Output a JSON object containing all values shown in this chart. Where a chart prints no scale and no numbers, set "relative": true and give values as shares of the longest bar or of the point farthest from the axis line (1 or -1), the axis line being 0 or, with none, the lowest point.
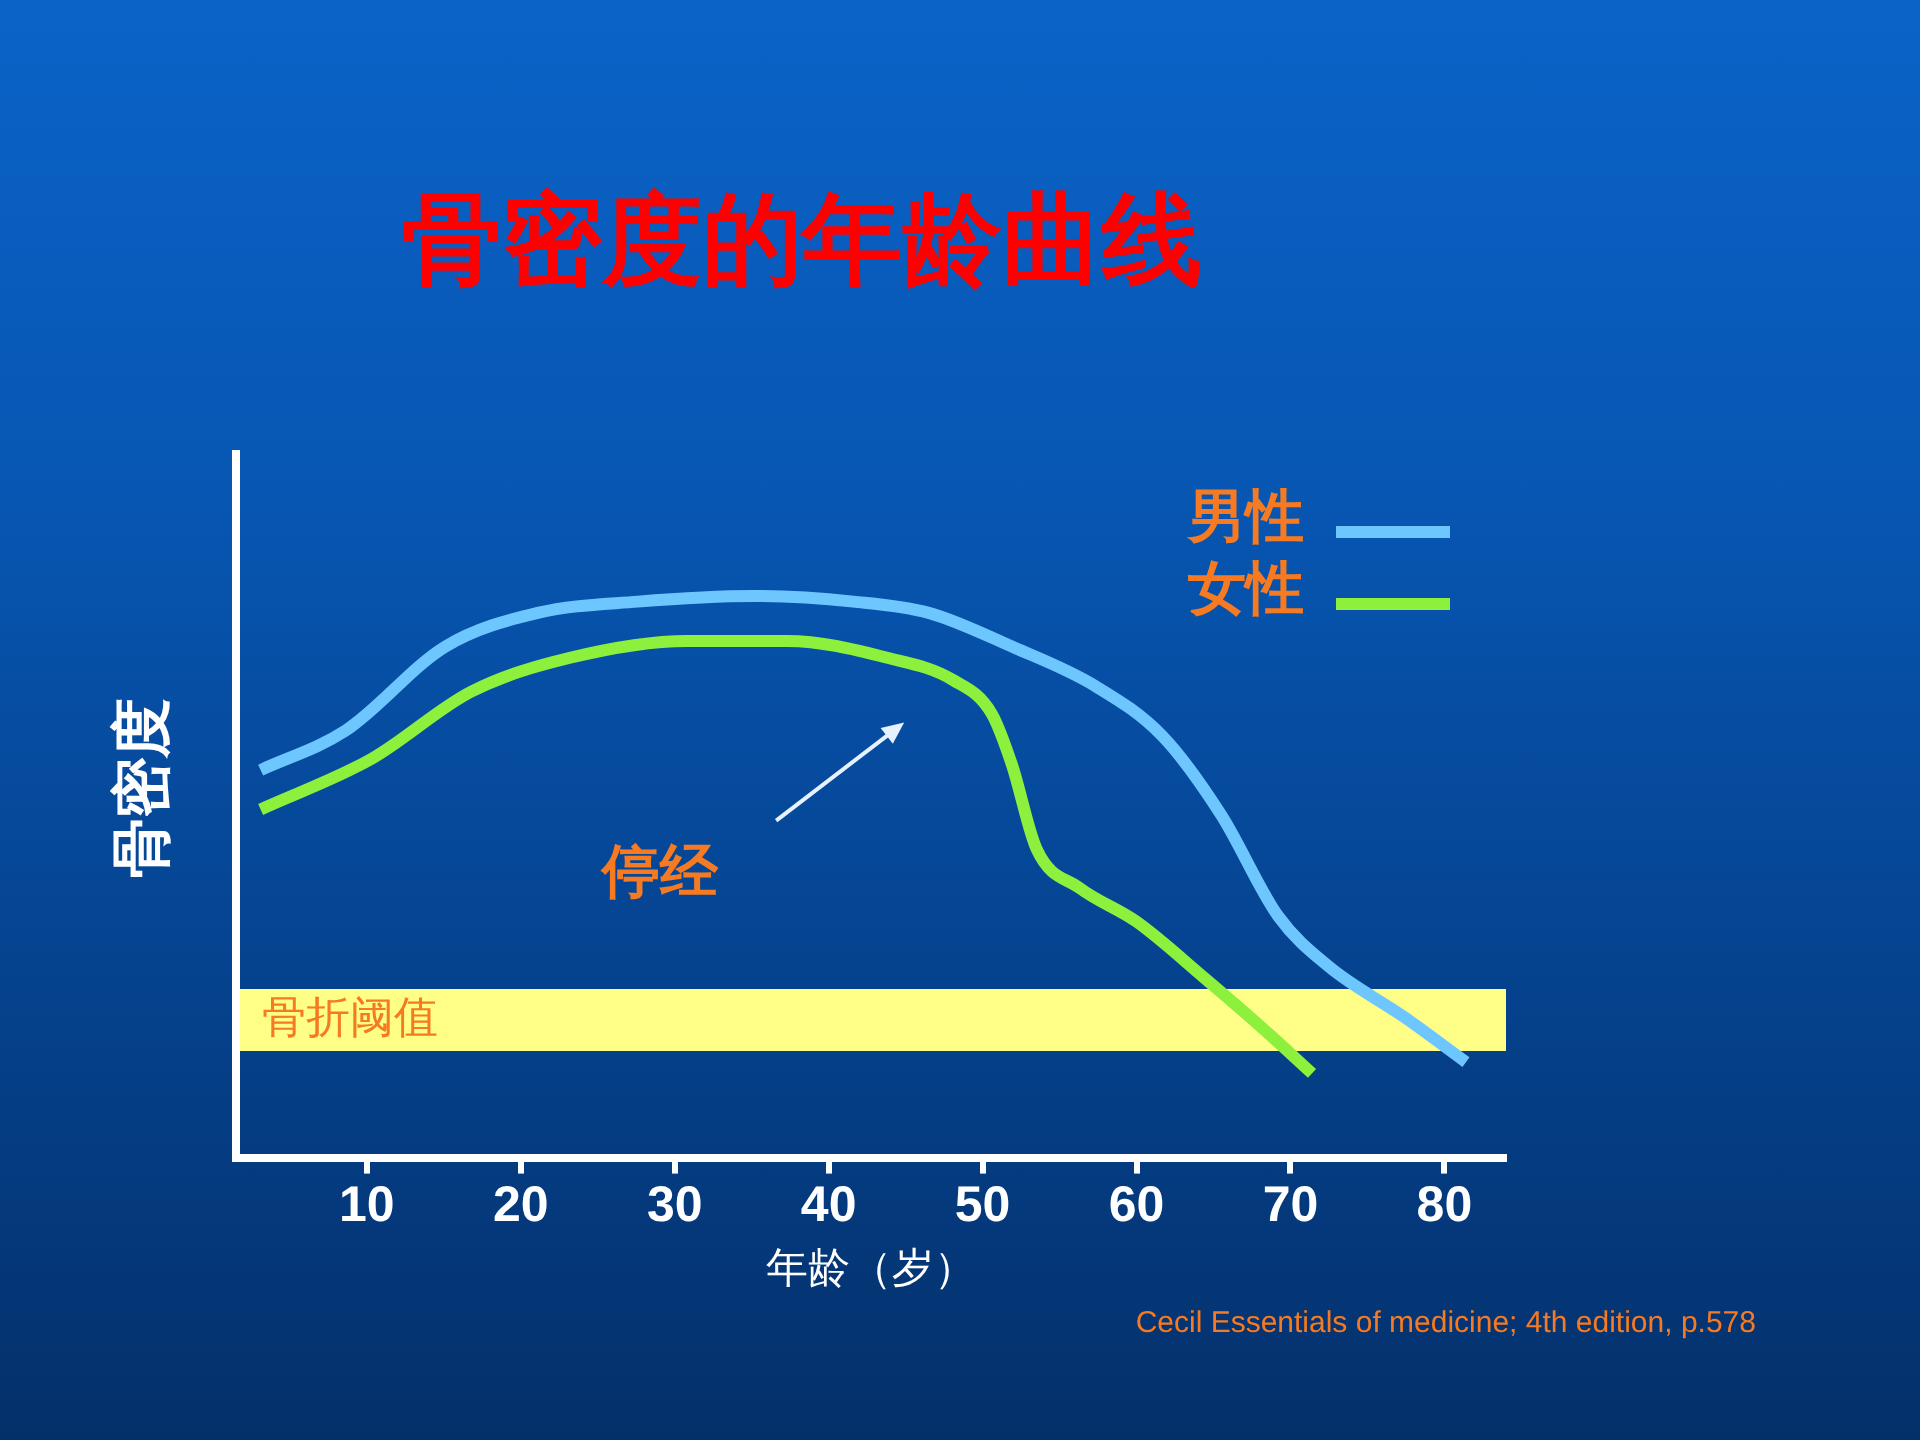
{
  "chart_data": {
    "type": "line",
    "title": "骨密度的年龄曲线",
    "xlabel": "年龄（岁）",
    "ylabel": "骨密度",
    "relative": true,
    "xlim": [
      1.5,
      84
    ],
    "xticks": [
      10,
      20,
      30,
      40,
      50,
      60,
      70,
      80
    ],
    "legend": "top right",
    "marker": "none",
    "series": [
      {
        "name": "男性",
        "color": "#6ec6ff",
        "x": [
          3.1,
          8.6,
          15.1,
          21.1,
          27.6,
          35.2,
          41.6,
          46.5,
          51.9,
          57.3,
          61.7,
          65.5,
          69.2,
          72.5,
          77.4,
          81.4
        ],
        "values": [
          0.69,
          0.76,
          0.91,
          0.97,
          0.99,
          1.0,
          0.99,
          0.97,
          0.91,
          0.84,
          0.75,
          0.61,
          0.43,
          0.34,
          0.25,
          0.17
        ]
      },
      {
        "name": "女性",
        "color": "#8cf03c",
        "x": [
          3.1,
          10.3,
          16.8,
          23.2,
          30.8,
          37.3,
          43.8,
          48.1,
          50.6,
          51.9,
          53.5,
          56.3,
          60.0,
          64.4,
          68.2,
          71.4
        ],
        "values": [
          0.62,
          0.71,
          0.83,
          0.89,
          0.92,
          0.92,
          0.89,
          0.85,
          0.79,
          0.7,
          0.55,
          0.48,
          0.42,
          0.32,
          0.23,
          0.15
        ]
      }
    ],
    "bands": [
      {
        "axis": "y",
        "from": 0.19,
        "to": 0.3,
        "label": "骨折阈值",
        "color": "#ffff88"
      }
    ],
    "annotations": [
      "停经",
      "Cecil Essentials of medicine; 4th edition, p.578"
    ]
  }
}
